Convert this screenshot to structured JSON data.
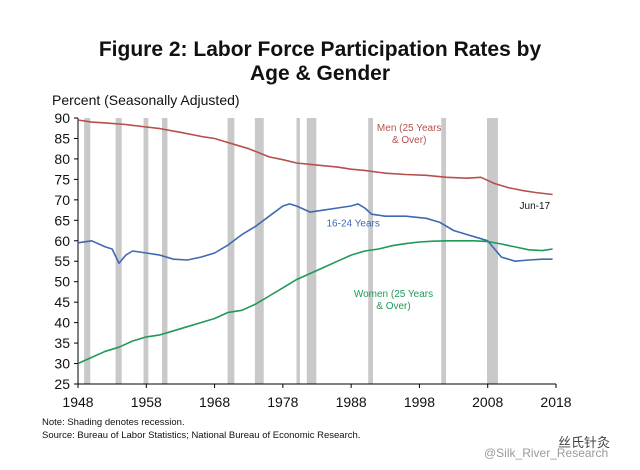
{
  "chart_data": {
    "type": "line",
    "title": "Figure 2: Labor Force Participation Rates by",
    "title_line2": "Age & Gender",
    "ylabel": "Percent (Seasonally Adjusted)",
    "xlim": [
      1948,
      2018
    ],
    "ylim": [
      25,
      90
    ],
    "x_ticks": [
      "1948",
      "1958",
      "1968",
      "1978",
      "1988",
      "1998",
      "2008",
      "2018"
    ],
    "y_ticks": [
      "25",
      "30",
      "35",
      "40",
      "45",
      "50",
      "55",
      "60",
      "65",
      "70",
      "75",
      "80",
      "85",
      "90"
    ],
    "recessions": [
      [
        1948.9,
        1949.8
      ],
      [
        1953.5,
        1954.4
      ],
      [
        1957.6,
        1958.3
      ],
      [
        1960.3,
        1961.1
      ],
      [
        1969.9,
        1970.9
      ],
      [
        1973.9,
        1975.2
      ],
      [
        1980.0,
        1980.5
      ],
      [
        1981.5,
        1982.9
      ],
      [
        1990.5,
        1991.2
      ],
      [
        2001.2,
        2001.9
      ],
      [
        2007.9,
        2009.5
      ]
    ],
    "series": [
      {
        "name": "Men (25 Years & Over)",
        "label_lines": [
          "Men (25 Years",
          "& Over)"
        ],
        "color": "#b5504c",
        "points": [
          [
            1948,
            89.5
          ],
          [
            1950,
            89.0
          ],
          [
            1952,
            88.8
          ],
          [
            1955,
            88.4
          ],
          [
            1958,
            87.8
          ],
          [
            1960,
            87.4
          ],
          [
            1963,
            86.5
          ],
          [
            1966,
            85.5
          ],
          [
            1968,
            85.0
          ],
          [
            1970,
            84.0
          ],
          [
            1973,
            82.5
          ],
          [
            1976,
            80.5
          ],
          [
            1978,
            79.8
          ],
          [
            1980,
            79.0
          ],
          [
            1983,
            78.5
          ],
          [
            1986,
            78.0
          ],
          [
            1988,
            77.5
          ],
          [
            1990,
            77.2
          ],
          [
            1993,
            76.5
          ],
          [
            1996,
            76.2
          ],
          [
            1999,
            76.0
          ],
          [
            2002,
            75.5
          ],
          [
            2005,
            75.3
          ],
          [
            2007,
            75.5
          ],
          [
            2009,
            74.0
          ],
          [
            2011,
            73.0
          ],
          [
            2013,
            72.3
          ],
          [
            2015,
            71.8
          ],
          [
            2017.5,
            71.3
          ]
        ]
      },
      {
        "name": "16-24 Years",
        "label_lines": [
          "16-24 Years"
        ],
        "color": "#3f69b3",
        "points": [
          [
            1948,
            59.5
          ],
          [
            1950,
            60.0
          ],
          [
            1952,
            58.5
          ],
          [
            1953,
            58.0
          ],
          [
            1954,
            54.5
          ],
          [
            1955,
            56.5
          ],
          [
            1956,
            57.5
          ],
          [
            1958,
            57.0
          ],
          [
            1960,
            56.5
          ],
          [
            1962,
            55.5
          ],
          [
            1964,
            55.3
          ],
          [
            1966,
            56.0
          ],
          [
            1968,
            57.0
          ],
          [
            1970,
            59.0
          ],
          [
            1972,
            61.5
          ],
          [
            1974,
            63.5
          ],
          [
            1976,
            66.0
          ],
          [
            1978,
            68.5
          ],
          [
            1979,
            69.0
          ],
          [
            1980,
            68.5
          ],
          [
            1982,
            67.0
          ],
          [
            1984,
            67.5
          ],
          [
            1986,
            68.0
          ],
          [
            1988,
            68.5
          ],
          [
            1989,
            69.0
          ],
          [
            1990,
            68.0
          ],
          [
            1991,
            66.5
          ],
          [
            1993,
            66.0
          ],
          [
            1996,
            66.0
          ],
          [
            1999,
            65.5
          ],
          [
            2001,
            64.5
          ],
          [
            2003,
            62.5
          ],
          [
            2005,
            61.5
          ],
          [
            2007,
            60.5
          ],
          [
            2008,
            60.0
          ],
          [
            2009,
            58.0
          ],
          [
            2010,
            56.0
          ],
          [
            2012,
            55.0
          ],
          [
            2014,
            55.3
          ],
          [
            2016,
            55.5
          ],
          [
            2017.5,
            55.5
          ]
        ]
      },
      {
        "name": "Women (25 Years & Over)",
        "label_lines": [
          "Women (25 Years",
          "& Over)"
        ],
        "color": "#1f9a56",
        "points": [
          [
            1948,
            30.0
          ],
          [
            1950,
            31.5
          ],
          [
            1952,
            33.0
          ],
          [
            1954,
            34.0
          ],
          [
            1956,
            35.5
          ],
          [
            1958,
            36.5
          ],
          [
            1960,
            37.0
          ],
          [
            1962,
            38.0
          ],
          [
            1964,
            39.0
          ],
          [
            1966,
            40.0
          ],
          [
            1968,
            41.0
          ],
          [
            1970,
            42.5
          ],
          [
            1972,
            43.0
          ],
          [
            1974,
            44.5
          ],
          [
            1976,
            46.5
          ],
          [
            1978,
            48.5
          ],
          [
            1980,
            50.5
          ],
          [
            1982,
            52.0
          ],
          [
            1984,
            53.5
          ],
          [
            1986,
            55.0
          ],
          [
            1988,
            56.5
          ],
          [
            1990,
            57.5
          ],
          [
            1992,
            58.0
          ],
          [
            1994,
            58.8
          ],
          [
            1996,
            59.3
          ],
          [
            1998,
            59.7
          ],
          [
            2000,
            59.9
          ],
          [
            2002,
            60.0
          ],
          [
            2004,
            60.0
          ],
          [
            2006,
            60.0
          ],
          [
            2008,
            59.8
          ],
          [
            2010,
            59.2
          ],
          [
            2012,
            58.5
          ],
          [
            2014,
            57.8
          ],
          [
            2016,
            57.6
          ],
          [
            2017.5,
            58.0
          ]
        ]
      }
    ],
    "annotation": "Jun-17",
    "notes": [
      "Note: Shading denotes recession.",
      "Source: Bureau of Labor Statistics; National Bureau of Economic Research."
    ]
  },
  "watermark": {
    "left_text": "@Silk_River_Research",
    "right_text": "丝氏针灸"
  }
}
